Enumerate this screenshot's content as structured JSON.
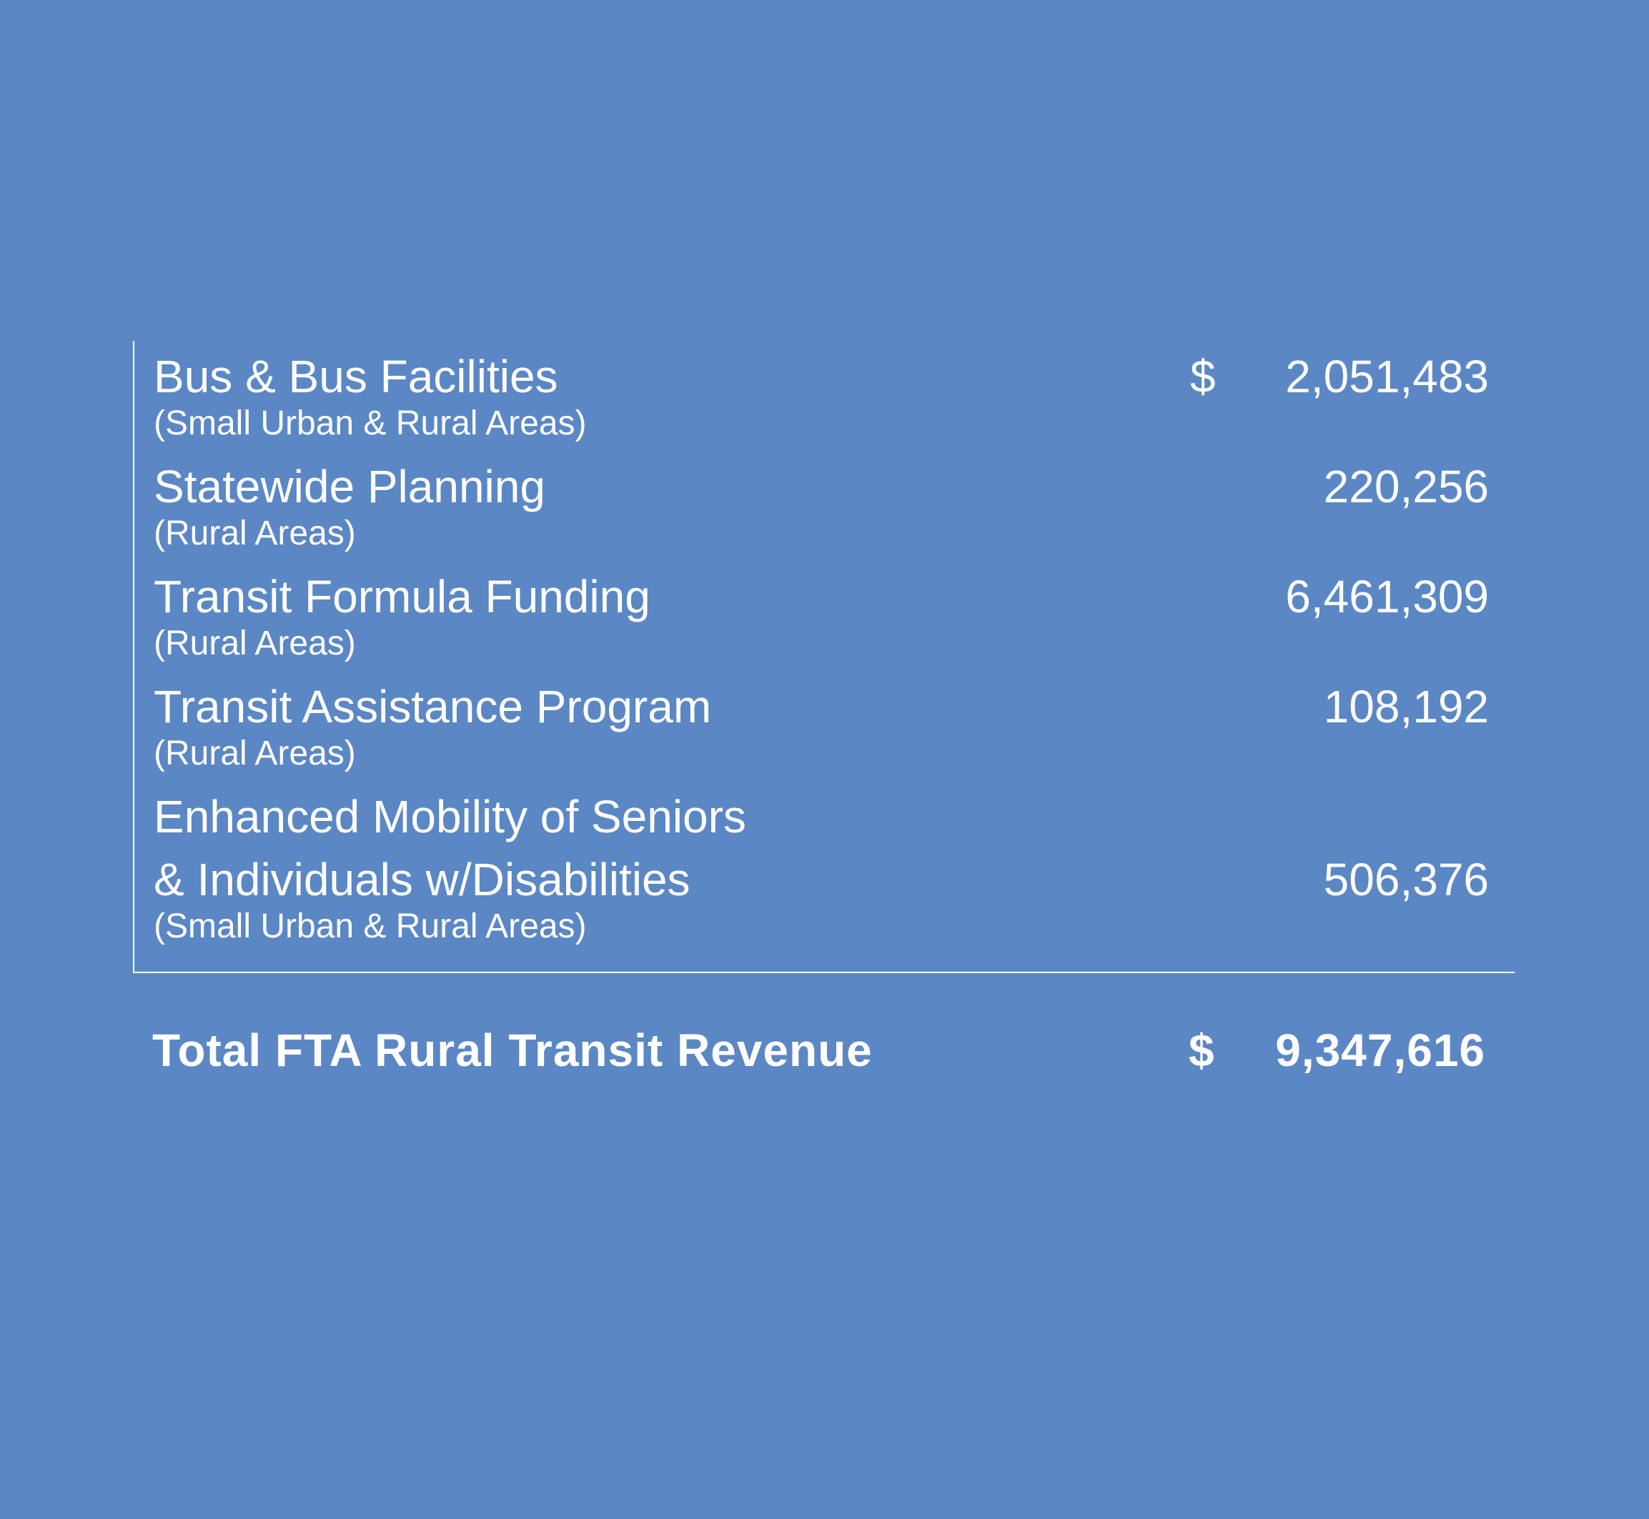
{
  "items": [
    {
      "label": "Bus & Bus Facilities",
      "label_line2": "",
      "sub": "(Small Urban & Rural Areas)",
      "currency": "$",
      "amount": "2,051,483"
    },
    {
      "label": "Statewide Planning",
      "label_line2": "",
      "sub": "(Rural Areas)",
      "currency": "",
      "amount": "220,256"
    },
    {
      "label": "Transit Formula Funding",
      "label_line2": "",
      "sub": "(Rural Areas)",
      "currency": "",
      "amount": "6,461,309"
    },
    {
      "label": "Transit Assistance Program",
      "label_line2": "",
      "sub": "(Rural Areas)",
      "currency": "",
      "amount": "108,192"
    },
    {
      "label": "Enhanced Mobility of Seniors",
      "label_line2": "& Individuals w/Disabilities",
      "sub": "(Small Urban & Rural Areas)",
      "currency": "",
      "amount": "506,376"
    }
  ],
  "total": {
    "label": "Total FTA Rural Transit Revenue",
    "currency": "$",
    "amount": "9,347,616"
  }
}
